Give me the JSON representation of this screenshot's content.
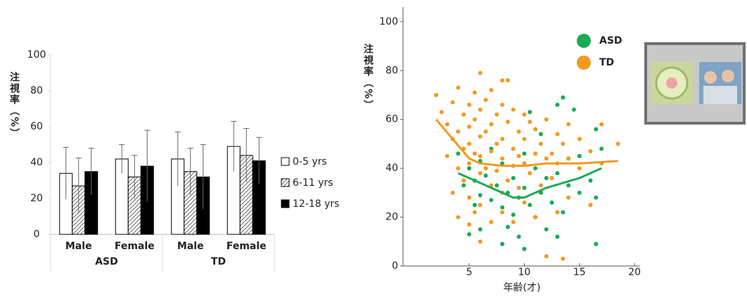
{
  "chart_data": [
    {
      "type": "bar",
      "y_label": "注視率（%）",
      "categories": [
        "Male",
        "Female",
        "Male",
        "Female"
      ],
      "groups": [
        {
          "label": "ASD",
          "color": "#1aaa55",
          "span": [
            0,
            1
          ]
        },
        {
          "label": "TD",
          "color": "#f39a1e",
          "span": [
            2,
            3
          ]
        }
      ],
      "ylim": [
        0,
        100
      ],
      "yticks": [
        0,
        20,
        40,
        60,
        80,
        100
      ],
      "series": [
        {
          "name": "0-5 yrs",
          "color": "#ffffff",
          "values": [
            34,
            42,
            42,
            49
          ],
          "errors": [
            14.5,
            8,
            15,
            14
          ]
        },
        {
          "name": "6-11 yrs",
          "color": "hatch",
          "values": [
            27,
            32,
            35,
            44
          ],
          "errors": [
            15.5,
            12,
            13,
            15
          ]
        },
        {
          "name": "12-18 yrs",
          "color": "#000000",
          "values": [
            35,
            38,
            32,
            41
          ],
          "errors": [
            13,
            20,
            18,
            13
          ]
        }
      ]
    },
    {
      "type": "scatter",
      "y_label": "注視率（%）",
      "x_label": "年齢(才)",
      "xlim": [
        -1,
        20.5
      ],
      "xticks": [
        5,
        10,
        15,
        20
      ],
      "ylim": [
        0,
        106
      ],
      "yticks": [
        0,
        20,
        40,
        60,
        80,
        100
      ],
      "series": [
        {
          "name": "ASD",
          "color": "#1aaa55",
          "x": [
            4,
            4.5,
            5,
            5,
            5.5,
            5.5,
            6,
            6,
            6,
            6.5,
            7,
            7,
            7.5,
            8,
            8,
            8,
            8.5,
            8.5,
            9,
            9,
            9.5,
            9.5,
            10,
            10,
            10,
            10.5,
            10.5,
            11,
            11,
            11.5,
            11.5,
            12,
            12,
            12.5,
            13,
            13,
            13,
            13.5,
            13.5,
            14,
            14,
            14.5,
            15,
            15,
            16,
            16.5,
            16.5,
            17,
            16.5
          ],
          "y": [
            46,
            33,
            40,
            13,
            35,
            25,
            43,
            29,
            15,
            37,
            48,
            27,
            33,
            42,
            24,
            9,
            30,
            16,
            36,
            21,
            28,
            12,
            46,
            32,
            7,
            63,
            25,
            40,
            20,
            54,
            30,
            36,
            15,
            26,
            66,
            38,
            12,
            69,
            22,
            44,
            33,
            64,
            45,
            30,
            35,
            56,
            28,
            48,
            9
          ]
        },
        {
          "name": "TD",
          "color": "#f39a1e",
          "x": [
            2,
            2.5,
            3,
            3,
            3.5,
            3.5,
            3.5,
            4,
            4,
            4,
            4,
            4.5,
            4.5,
            4.5,
            5,
            5,
            5,
            5,
            5,
            5,
            5.5,
            5.5,
            5.5,
            5.5,
            6,
            6,
            6,
            6,
            6,
            6,
            6,
            6.5,
            6.5,
            6.5,
            7,
            7,
            7,
            7,
            7,
            7.5,
            7.5,
            7.5,
            8,
            8,
            8,
            8,
            8,
            8,
            8.5,
            8.5,
            8.5,
            9,
            9,
            9,
            9,
            9.5,
            9.5,
            9.5,
            10,
            10,
            10,
            10,
            10.5,
            10.5,
            11,
            11,
            11,
            11.5,
            11.5,
            12,
            12,
            12,
            12.5,
            12.5,
            13,
            13,
            13,
            13.5,
            13.5,
            14,
            14,
            14,
            15,
            15,
            16,
            16,
            17,
            17,
            18.5
          ],
          "y": [
            70,
            63,
            58,
            45,
            67,
            52,
            30,
            73,
            55,
            40,
            20,
            62,
            48,
            35,
            66,
            57,
            50,
            42,
            28,
            17,
            71,
            60,
            46,
            22,
            79,
            64,
            53,
            45,
            38,
            25,
            10,
            68,
            55,
            40,
            72,
            58,
            47,
            33,
            18,
            62,
            50,
            39,
            76,
            66,
            52,
            44,
            30,
            22,
            76,
            59,
            35,
            64,
            48,
            41,
            18,
            55,
            45,
            32,
            62,
            52,
            42,
            26,
            59,
            38,
            56,
            46,
            20,
            50,
            33,
            60,
            44,
            4,
            46,
            36,
            54,
            42,
            22,
            50,
            3,
            58,
            44,
            28,
            52,
            40,
            47,
            25,
            58,
            42,
            50
          ]
        }
      ],
      "trends": [
        {
          "color": "#1aaa55",
          "x": [
            4,
            5,
            7,
            9,
            10,
            12,
            15,
            17
          ],
          "y": [
            38,
            36,
            32,
            28,
            28,
            32,
            36,
            40
          ]
        },
        {
          "color": "#f39a1e",
          "x": [
            2,
            3.5,
            5,
            6,
            8,
            10,
            12,
            15,
            18.5
          ],
          "y": [
            60,
            52,
            44,
            42,
            41,
            41,
            42,
            42,
            43
          ]
        }
      ]
    }
  ]
}
